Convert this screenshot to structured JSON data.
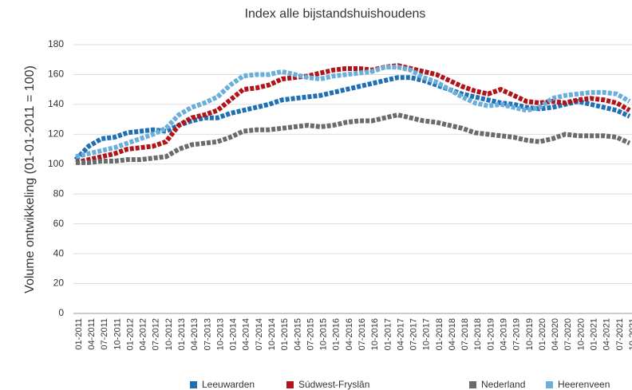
{
  "chart_data": {
    "type": "line",
    "title": "Index alle bijstandshuishoudens",
    "y_label": "Volume ontwikkeling (01-01-2011 = 100)",
    "categories": [
      "01-2011",
      "04-2011",
      "07-2011",
      "10-2011",
      "01-2012",
      "04-2012",
      "07-2012",
      "10-2012",
      "01-2013",
      "04-2013",
      "07-2013",
      "10-2013",
      "01-2014",
      "04-2014",
      "07-2014",
      "10-2014",
      "01-2015",
      "04-2015",
      "07-2015",
      "10-2015",
      "01-2016",
      "04-2016",
      "07-2016",
      "10-2016",
      "01-2017",
      "04-2017",
      "07-2017",
      "10-2017",
      "01-2018",
      "04-2018",
      "07-2018",
      "10-2018",
      "01-2019",
      "04-2019",
      "07-2019",
      "10-2019",
      "01-2020",
      "04-2020",
      "07-2020",
      "10-2020",
      "01-2021",
      "04-2021",
      "07-2021",
      "10-2021"
    ],
    "series": [
      {
        "name": "Leeuwarden",
        "color": "#1f6fb5",
        "values": [
          103,
          112,
          117,
          118,
          121,
          122,
          123,
          122,
          126,
          129,
          131,
          131,
          134,
          136,
          138,
          140,
          143,
          144,
          145,
          146,
          148,
          150,
          152,
          154,
          156,
          158,
          158,
          156,
          153,
          150,
          147,
          145,
          143,
          141,
          140,
          138,
          137,
          138,
          140,
          142,
          140,
          138,
          136,
          132
        ]
      },
      {
        "name": "Súdwest-Fryslân",
        "color": "#b0141a",
        "values": [
          101,
          103,
          105,
          107,
          110,
          111,
          112,
          115,
          126,
          131,
          133,
          136,
          143,
          150,
          151,
          153,
          157,
          158,
          159,
          161,
          163,
          164,
          164,
          163,
          165,
          166,
          164,
          162,
          160,
          156,
          152,
          149,
          147,
          150,
          146,
          142,
          141,
          142,
          141,
          143,
          144,
          143,
          141,
          136
        ]
      },
      {
        "name": "Nederland",
        "color": "#6b6b6b",
        "values": [
          101,
          101,
          102,
          102,
          103,
          103,
          104,
          105,
          110,
          113,
          114,
          115,
          118,
          122,
          123,
          123,
          124,
          125,
          126,
          125,
          126,
          128,
          129,
          129,
          131,
          133,
          131,
          129,
          128,
          126,
          124,
          121,
          120,
          119,
          118,
          116,
          115,
          117,
          120,
          119,
          119,
          119,
          118,
          114
        ]
      },
      {
        "name": "Heerenveen",
        "color": "#6aaedb",
        "values": [
          105,
          107,
          109,
          111,
          114,
          117,
          120,
          124,
          133,
          138,
          141,
          145,
          153,
          159,
          160,
          160,
          162,
          160,
          158,
          157,
          159,
          160,
          161,
          162,
          165,
          165,
          163,
          158,
          155,
          150,
          145,
          141,
          139,
          140,
          138,
          136,
          138,
          144,
          146,
          147,
          148,
          148,
          147,
          142
        ]
      }
    ],
    "ylim": [
      0,
      180
    ],
    "yticks": [
      0,
      20,
      40,
      60,
      80,
      100,
      120,
      140,
      160,
      180
    ],
    "grid": true
  }
}
